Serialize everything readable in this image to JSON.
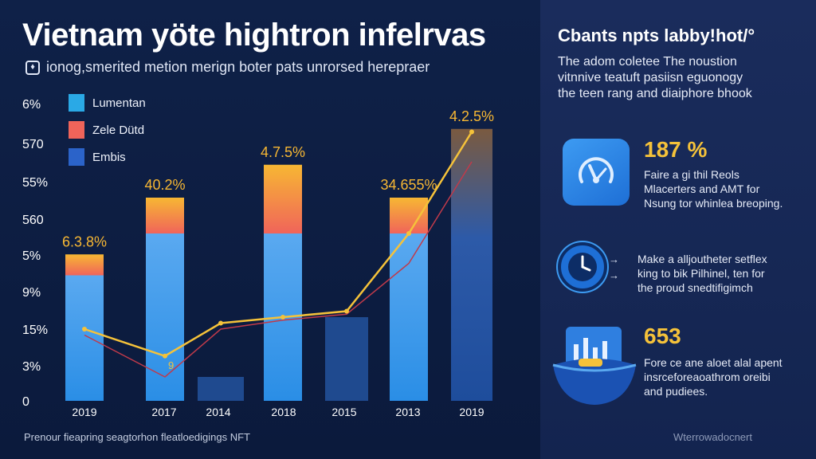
{
  "header": {
    "title": "Vietnam yöte hightron infelrvas",
    "subtitle": "ionog,smerited metion merign boter pats unrorsed herepraer",
    "subtitle_icon": "shield-icon"
  },
  "legend": [
    {
      "label": "Lumentan",
      "color": "#2aa9e6"
    },
    {
      "label": "Zele Dütd",
      "color": "#f0645a"
    },
    {
      "label": "Embis",
      "color": "#2b63c9"
    }
  ],
  "chart_data": {
    "type": "bar",
    "title": "Vietnam yöte hightron infelrvas",
    "y_tick_labels": [
      "6%",
      "570",
      "55%",
      "560",
      "5%",
      "9%",
      "15%",
      "3%",
      "0"
    ],
    "categories": [
      "2019",
      "2017",
      "2014",
      "2018",
      "2015",
      "2013",
      "2019"
    ],
    "series": [
      {
        "name": "Lumentan",
        "values": [
          4.2,
          5.6,
          0.8,
          5.6,
          2.8,
          5.6,
          9.1
        ]
      },
      {
        "name": "Zele Dütd",
        "values": [
          0.7,
          0,
          0,
          1.2,
          0,
          0,
          0
        ]
      },
      {
        "name": "Embis",
        "values": [
          0,
          1.2,
          0,
          1.1,
          0,
          1.2,
          0
        ]
      }
    ],
    "bar_labels": [
      "6.3.8%",
      "40.2%",
      "",
      "4.7.5%",
      "",
      "34.655%",
      "4.2.5%"
    ],
    "trend_line_1": [
      2.4,
      1.5,
      2.6,
      2.8,
      3.0,
      5.6,
      9.0
    ],
    "trend_line_2": [
      2.2,
      0.8,
      2.4,
      2.7,
      2.9,
      4.6,
      8.0
    ],
    "trend_markers": [
      "",
      "9",
      "",
      "",
      "",
      "",
      ""
    ],
    "ylim": [
      0,
      10
    ],
    "colors": {
      "bar_top": "#f7b733",
      "bar_mid": "#f0645a",
      "bar_base": "#2aa9e6",
      "dark_bar": "#1f4a8f",
      "trend1": "#f5c23a",
      "trend2": "#c03a4a"
    }
  },
  "side_panel": {
    "title": "Cbants npts labby!hot/°",
    "desc_lines": [
      "The adom coletee The noustion",
      "vitnnive teatuft pasiisn eguonogy",
      "the teen rang and diaiphore bhook"
    ],
    "stats": [
      {
        "number": "187 %",
        "icon": "gauge-icon",
        "lines": [
          "Faire a gi thil Reols",
          "Mlacerters and AMT for",
          "Nsung tor whinlea breoping."
        ]
      },
      {
        "number": "",
        "icon": "clock-icon",
        "lines": [
          "Make a alljoutheter setflex",
          "king to bik Pilhinel, ten for",
          "the proud snedtifigimch"
        ]
      },
      {
        "number": "653",
        "icon": "chart-bowl-icon",
        "lines": [
          "Fore ce ane aloet alal apent",
          "insrceforeaoathrom oreibi",
          "and pudiees."
        ]
      }
    ]
  },
  "footer": {
    "left": "Prenour fieapring seagtorhon fleatloedigings NFT",
    "right": "Wterrowadocnert"
  }
}
